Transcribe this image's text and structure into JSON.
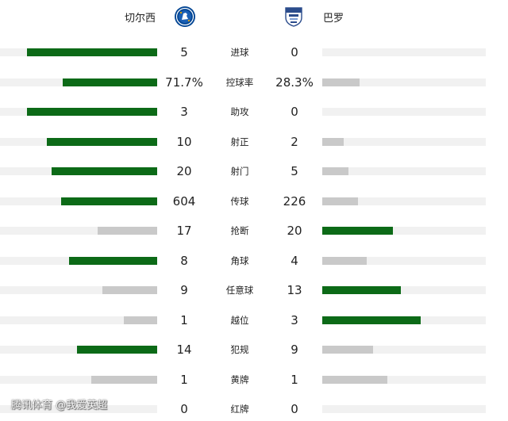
{
  "header": {
    "home_team": "切尔西",
    "away_team": "巴罗",
    "home_crest_icon": "chelsea-crest-icon",
    "away_crest_icon": "barrow-crest-icon"
  },
  "colors": {
    "leading_bar": "#0c6a17",
    "trailing_bar": "#c9c9c9",
    "track": "#f1f1f1"
  },
  "stats": [
    {
      "label": "进球",
      "home": "5",
      "away": "0",
      "home_fill": 0.83,
      "away_fill": 0.0,
      "leader": "home"
    },
    {
      "label": "控球率",
      "home": "71.7%",
      "away": "28.3%",
      "home_fill": 0.6,
      "away_fill": 0.23,
      "leader": "home"
    },
    {
      "label": "助攻",
      "home": "3",
      "away": "0",
      "home_fill": 0.83,
      "away_fill": 0.0,
      "leader": "home"
    },
    {
      "label": "射正",
      "home": "10",
      "away": "2",
      "home_fill": 0.7,
      "away_fill": 0.13,
      "leader": "home"
    },
    {
      "label": "射门",
      "home": "20",
      "away": "5",
      "home_fill": 0.67,
      "away_fill": 0.16,
      "leader": "home"
    },
    {
      "label": "传球",
      "home": "604",
      "away": "226",
      "home_fill": 0.61,
      "away_fill": 0.22,
      "leader": "home"
    },
    {
      "label": "抢断",
      "home": "17",
      "away": "20",
      "home_fill": 0.38,
      "away_fill": 0.43,
      "leader": "away"
    },
    {
      "label": "角球",
      "home": "8",
      "away": "4",
      "home_fill": 0.56,
      "away_fill": 0.27,
      "leader": "home"
    },
    {
      "label": "任意球",
      "home": "9",
      "away": "13",
      "home_fill": 0.35,
      "away_fill": 0.48,
      "leader": "away"
    },
    {
      "label": "越位",
      "home": "1",
      "away": "3",
      "home_fill": 0.21,
      "away_fill": 0.6,
      "leader": "away"
    },
    {
      "label": "犯规",
      "home": "14",
      "away": "9",
      "home_fill": 0.51,
      "away_fill": 0.31,
      "leader": "home"
    },
    {
      "label": "黄牌",
      "home": "1",
      "away": "1",
      "home_fill": 0.42,
      "away_fill": 0.4,
      "leader": "none"
    },
    {
      "label": "红牌",
      "home": "0",
      "away": "0",
      "home_fill": 0.0,
      "away_fill": 0.0,
      "leader": "none"
    }
  ],
  "watermark": "腾讯体育 @我爱英超"
}
